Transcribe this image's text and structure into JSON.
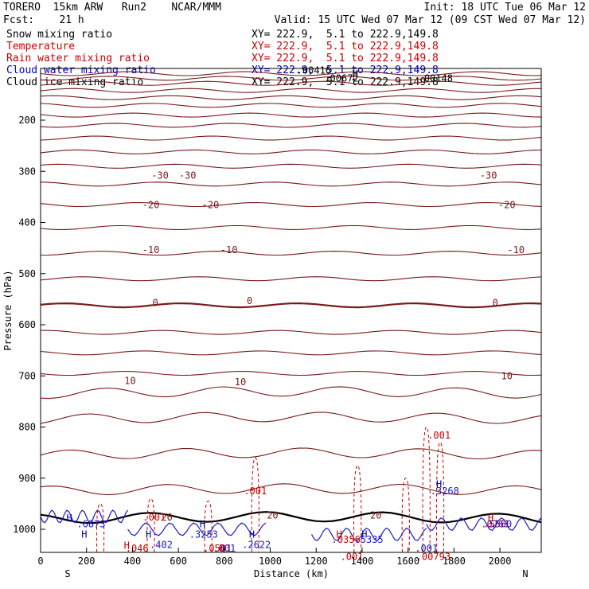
{
  "header": {
    "model": "TORERO  15km ARW   Run2    NCAR/MMM",
    "init": "Init: 18 UTC Tue 06 Mar 12",
    "fcst": "Fcst:    21 h",
    "valid": "Valid: 15 UTC Wed 07 Mar 12 (09 CST Wed 07 Mar 12)"
  },
  "legend": [
    {
      "name": "Snow mixing ratio",
      "xy": "XY= 222.9,  5.1 to 222.9,149.8",
      "color": "#000000"
    },
    {
      "name": "Temperature",
      "xy": "XY= 222.9,  5.1 to 222.9,149.8",
      "color": "#cc0000"
    },
    {
      "name": "Rain water mixing ratio",
      "xy": "XY= 222.9,  5.1 to 222.9,149.8",
      "color": "#cc0000"
    },
    {
      "name": "Cloud water mixing ratio",
      "xy": "XY= 222.9,  5.1 to 222.9,149.8",
      "color": "#0000cc"
    },
    {
      "name": "Cloud ice mixing ratio",
      "xy": "XY= 222.9,  5.1 to 222.9,149.8",
      "color": "#000000"
    }
  ],
  "chart_data": {
    "type": "line",
    "xlabel": "Distance (km)",
    "ylabel": "Pressure (hPa)",
    "xlim": [
      0,
      2180
    ],
    "ylim": [
      1050,
      100
    ],
    "x_ticks": [
      0,
      200,
      400,
      600,
      800,
      1000,
      1200,
      1400,
      1600,
      1800,
      2000
    ],
    "y_ticks": [
      200,
      300,
      400,
      500,
      600,
      700,
      800,
      900,
      1000
    ],
    "end_labels": {
      "left": "S",
      "right": "N"
    },
    "temperature_isotherms_p": [
      109,
      118,
      128,
      142,
      156,
      171,
      190,
      210,
      235,
      262,
      290,
      325,
      365,
      410,
      460,
      510,
      562,
      615,
      655,
      695,
      735,
      785,
      855,
      925,
      980
    ],
    "temperature_labels": [
      {
        "text": "-30",
        "x": 520,
        "p": 308
      },
      {
        "text": "-30",
        "x": 640,
        "p": 308
      },
      {
        "text": "-30",
        "x": 1950,
        "p": 308
      },
      {
        "text": "-20",
        "x": 480,
        "p": 366
      },
      {
        "text": "-20",
        "x": 740,
        "p": 366
      },
      {
        "text": "-20",
        "x": 2030,
        "p": 366
      },
      {
        "text": "-10",
        "x": 480,
        "p": 454
      },
      {
        "text": "-10",
        "x": 820,
        "p": 454
      },
      {
        "text": "-10",
        "x": 2070,
        "p": 454
      },
      {
        "text": "0",
        "x": 500,
        "p": 557
      },
      {
        "text": "0",
        "x": 910,
        "p": 553
      },
      {
        "text": "0",
        "x": 1980,
        "p": 557
      },
      {
        "text": "10",
        "x": 390,
        "p": 710
      },
      {
        "text": "10",
        "x": 870,
        "p": 712
      },
      {
        "text": "10",
        "x": 2030,
        "p": 700
      },
      {
        "text": "20",
        "x": 550,
        "p": 977
      },
      {
        "text": "20",
        "x": 1010,
        "p": 973
      },
      {
        "text": "20",
        "x": 1460,
        "p": 973
      }
    ],
    "rain_labels": [
      {
        "text": ".001",
        "x": 1735,
        "p": 816
      },
      {
        "text": ".001",
        "x": 935,
        "p": 925
      },
      {
        "text": ".001",
        "x": 495,
        "p": 977
      },
      {
        "text": ".046",
        "x": 420,
        "p": 1037
      },
      {
        "text": ".0501",
        "x": 770,
        "p": 1037
      },
      {
        "text": ".0356",
        "x": 1330,
        "p": 1020
      },
      {
        "text": ".001",
        "x": 1355,
        "p": 1054
      },
      {
        "text": ".00793",
        "x": 1710,
        "p": 1054
      },
      {
        "text": ".0261",
        "x": 1980,
        "p": 990
      }
    ],
    "cloud_labels": [
      {
        "text": ".6873",
        "x": 220,
        "p": 990
      },
      {
        "text": ".3253",
        "x": 710,
        "p": 1010
      },
      {
        "text": ".2622",
        "x": 940,
        "p": 1030
      },
      {
        "text": ".402",
        "x": 525,
        "p": 1030
      },
      {
        "text": ".001",
        "x": 800,
        "p": 1037
      },
      {
        "text": ".5335",
        "x": 1430,
        "p": 1020
      },
      {
        "text": ".001",
        "x": 1680,
        "p": 1037
      },
      {
        "text": ".3268",
        "x": 1760,
        "p": 925
      },
      {
        "text": ".5560",
        "x": 1990,
        "p": 990
      }
    ],
    "extrema_markers": [
      {
        "text": "H",
        "x": 125,
        "p": 978,
        "color": "#0000cc"
      },
      {
        "text": "H",
        "x": 190,
        "p": 1010,
        "color": "#0000cc"
      },
      {
        "text": "H",
        "x": 470,
        "p": 1010,
        "color": "#0000cc"
      },
      {
        "text": "H",
        "x": 705,
        "p": 990,
        "color": "#0000cc"
      },
      {
        "text": "H",
        "x": 920,
        "p": 1010,
        "color": "#0000cc"
      },
      {
        "text": "H",
        "x": 1300,
        "p": 1010,
        "color": "#cc0000"
      },
      {
        "text": "H",
        "x": 1410,
        "p": 1010,
        "color": "#0000cc"
      },
      {
        "text": "H",
        "x": 1735,
        "p": 912,
        "color": "#0000cc"
      },
      {
        "text": "H",
        "x": 1960,
        "p": 978,
        "color": "#cc0000"
      },
      {
        "text": "H",
        "x": 790,
        "p": 1037,
        "color": "#cc0000"
      },
      {
        "text": "H",
        "x": 375,
        "p": 1032,
        "color": "#cc0000"
      }
    ],
    "top_labels": [
      {
        "text": ".00416",
        "x": 1190,
        "p": 103
      },
      {
        "text": ".00672",
        "x": 1310,
        "p": 118
      },
      {
        "text": ".00148",
        "x": 1720,
        "p": 118
      },
      {
        "text": "H",
        "x": 1370,
        "p": 110
      }
    ]
  }
}
